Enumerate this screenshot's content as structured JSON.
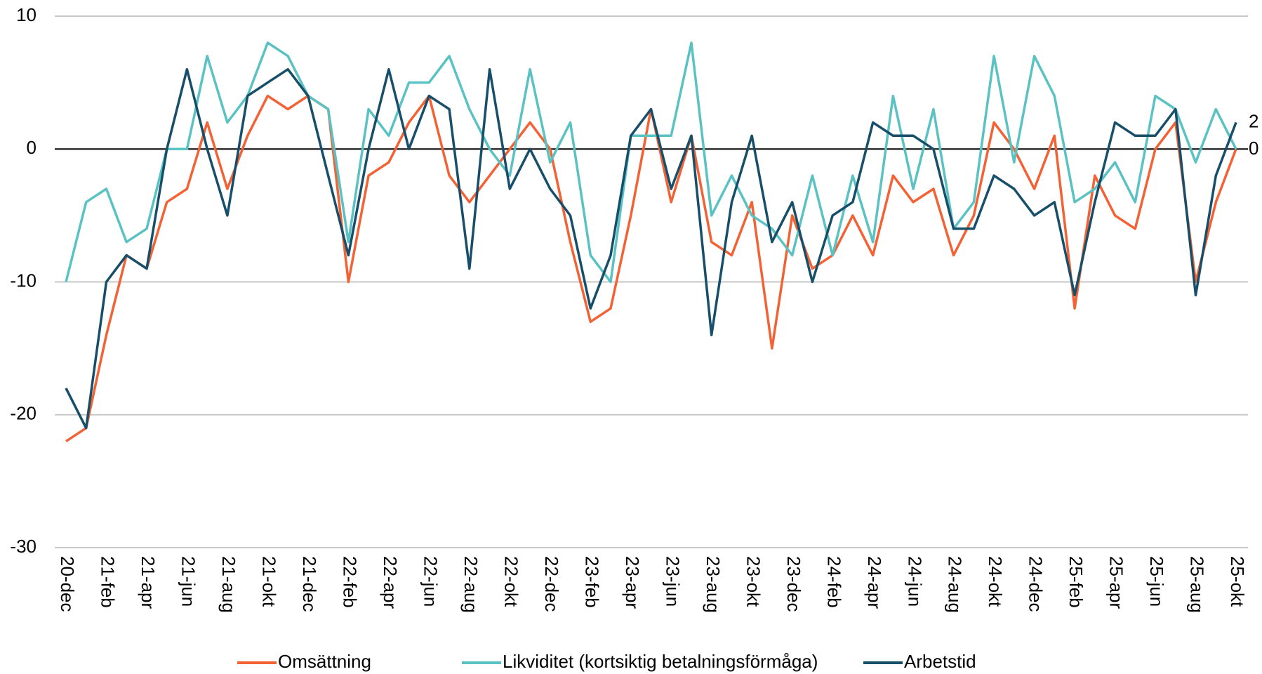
{
  "chart_data": {
    "type": "line",
    "categories": [
      "20-dec",
      null,
      "21-feb",
      null,
      "21-apr",
      null,
      "21-jun",
      null,
      "21-aug",
      null,
      "21-okt",
      null,
      "21-dec",
      null,
      "22-feb",
      null,
      "22-apr",
      null,
      "22-jun",
      null,
      "22-aug",
      null,
      "22-okt",
      null,
      "22-dec",
      null,
      "23-feb",
      null,
      "23-apr",
      null,
      "23-jun",
      null,
      "23-aug",
      null,
      "23-okt",
      null,
      "23-dec",
      null,
      "24-feb",
      null,
      "24-apr",
      null,
      "24-jun",
      null,
      "24-aug",
      null,
      "24-okt",
      null,
      "24-dec",
      null,
      "25-feb",
      null,
      "25-apr",
      null,
      "25-jun",
      null,
      "25-aug",
      null,
      "25-okt"
    ],
    "series": [
      {
        "name": "Omsättning",
        "color": "#f26235",
        "values": [
          -22,
          -21,
          -14,
          -8,
          -9,
          -4,
          -3,
          2,
          -3,
          1,
          4,
          3,
          4,
          3,
          -10,
          -2,
          -1,
          2,
          4,
          -2,
          -4,
          -2,
          0,
          2,
          0,
          -7,
          -13,
          -12,
          -5,
          3,
          -4,
          1,
          -7,
          -8,
          -4,
          -15,
          -5,
          -9,
          -8,
          -5,
          -8,
          -2,
          -4,
          -3,
          -8,
          -5,
          2,
          0,
          -3,
          1,
          -12,
          -2,
          -5,
          -6,
          0,
          2,
          -10,
          -4,
          0
        ]
      },
      {
        "name": "Likviditet (kortsiktig betalningsförmåga)",
        "color": "#5bc2c4",
        "values": [
          -10,
          -4,
          -3,
          -7,
          -6,
          0,
          0,
          7,
          2,
          4,
          8,
          7,
          4,
          3,
          -7,
          3,
          1,
          5,
          5,
          7,
          3,
          0,
          -2,
          6,
          -1,
          2,
          -8,
          -10,
          1,
          1,
          1,
          8,
          -5,
          -2,
          -5,
          -6,
          -8,
          -2,
          -8,
          -2,
          -7,
          4,
          -3,
          3,
          -6,
          -4,
          7,
          -1,
          7,
          4,
          -4,
          -3,
          -1,
          -4,
          4,
          3,
          -1,
          3,
          0
        ]
      },
      {
        "name": "Arbetstid",
        "color": "#174f6b",
        "values": [
          -18,
          -21,
          -10,
          -8,
          -9,
          0,
          6,
          0,
          -5,
          4,
          5,
          6,
          4,
          -2,
          -8,
          0,
          6,
          0,
          4,
          3,
          -9,
          6,
          -3,
          0,
          -3,
          -5,
          -12,
          -8,
          1,
          3,
          -3,
          1,
          -14,
          -4,
          1,
          -7,
          -4,
          -10,
          -5,
          -4,
          2,
          1,
          1,
          0,
          -6,
          -6,
          -2,
          -3,
          -5,
          -4,
          -11,
          -4,
          2,
          1,
          1,
          3,
          -11,
          -2,
          2
        ]
      }
    ],
    "ylim": [
      -30,
      10
    ],
    "yticks": [
      -30,
      -20,
      -10,
      0,
      10
    ],
    "grid": true,
    "legend": "bottom"
  }
}
